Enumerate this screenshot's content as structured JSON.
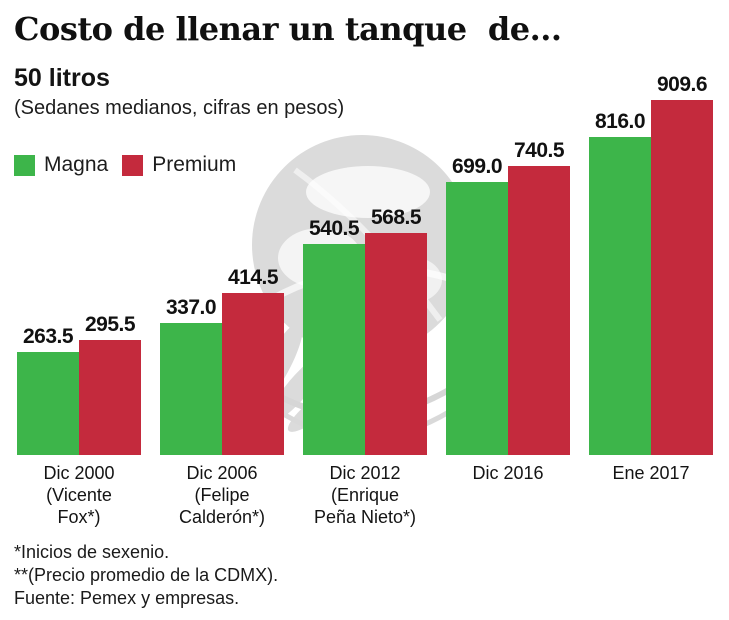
{
  "page": {
    "title": "Costo de llenar un tanque  de...",
    "subtitle": "50 litros",
    "subtitle_note": "(Sedanes medianos, cifras en pesos)"
  },
  "legend": [
    {
      "label": "Magna",
      "color": "#3db54a"
    },
    {
      "label": "Premium",
      "color": "#c42a3d"
    }
  ],
  "chart_data": {
    "type": "bar",
    "title": "Costo de llenar un tanque de...",
    "subtitle": "50 litros (Sedanes medianos, cifras en pesos)",
    "unit": "pesos",
    "categories": [
      "Dic 2000 (Vicente Fox*)",
      "Dic 2006 (Felipe Calderón*)",
      "Dic 2012 (Enrique Peña Nieto*)",
      "Dic 2016",
      "Ene 2017"
    ],
    "category_lines": [
      [
        "Dic 2000",
        "(Vicente",
        "Fox*)"
      ],
      [
        "Dic 2006",
        "(Felipe",
        "Calderón*)"
      ],
      [
        "Dic 2012",
        "(Enrique",
        "Peña Nieto*)"
      ],
      [
        "Dic 2016"
      ],
      [
        "Ene 2017"
      ]
    ],
    "series": [
      {
        "name": "Magna",
        "color": "#3db54a",
        "values": [
          263.5,
          337.0,
          540.5,
          699.0,
          816.0
        ]
      },
      {
        "name": "Premium",
        "color": "#c42a3d",
        "values": [
          295.5,
          414.5,
          568.5,
          740.5,
          909.6
        ]
      }
    ],
    "ylim": [
      0,
      950
    ],
    "grid": false,
    "legend_position": "top-left",
    "value_labels": true
  },
  "footnotes": [
    "*Inicios de sexenio.",
    "**(Precio promedio de la CDMX).",
    "Fuente: Pemex y empresas."
  ],
  "watermark": {
    "name": "eagle-globe-watermark",
    "color": "#dbdbdb"
  }
}
